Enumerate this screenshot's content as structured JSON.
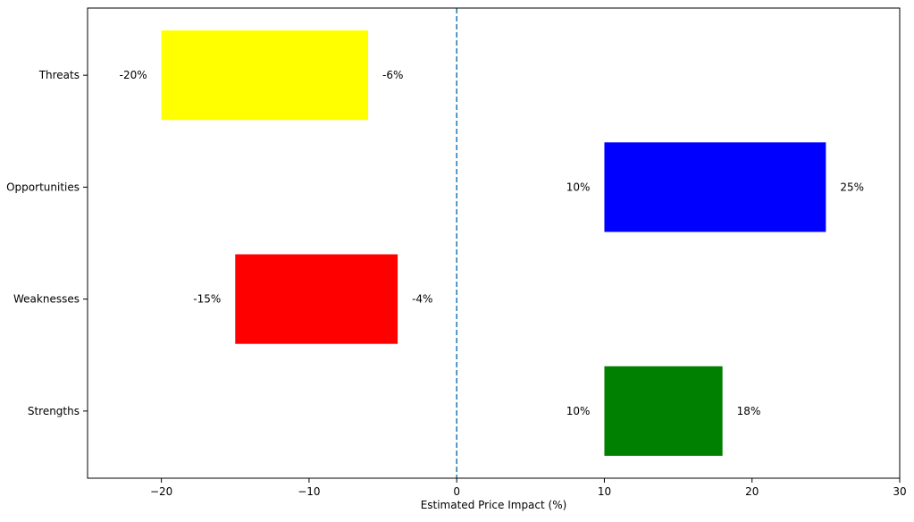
{
  "chart_data": {
    "type": "bar",
    "orientation": "horizontal",
    "title": "",
    "xlabel": "Estimated Price Impact (%)",
    "ylabel": "",
    "xlim": [
      -25,
      30
    ],
    "x_ticks": [
      -20,
      -10,
      0,
      10,
      20,
      30
    ],
    "x_tick_labels": [
      "−20",
      "−10",
      "0",
      "10",
      "20",
      "30"
    ],
    "reference_line": {
      "x": 0,
      "style": "dashed",
      "color": "#1f77b4"
    },
    "grid": false,
    "legend": "none",
    "categories": [
      "Strengths",
      "Weaknesses",
      "Opportunities",
      "Threats"
    ],
    "ranges": [
      {
        "category": "Strengths",
        "start": 10,
        "end": 18,
        "start_label": "10%",
        "end_label": "18%",
        "color": "#008000"
      },
      {
        "category": "Weaknesses",
        "start": -15,
        "end": -4,
        "start_label": "-15%",
        "end_label": "-4%",
        "color": "#ff0000"
      },
      {
        "category": "Opportunities",
        "start": 10,
        "end": 25,
        "start_label": "10%",
        "end_label": "25%",
        "color": "#0000ff"
      },
      {
        "category": "Threats",
        "start": -20,
        "end": -6,
        "start_label": "-20%",
        "end_label": "-6%",
        "color": "#ffff00"
      }
    ]
  }
}
